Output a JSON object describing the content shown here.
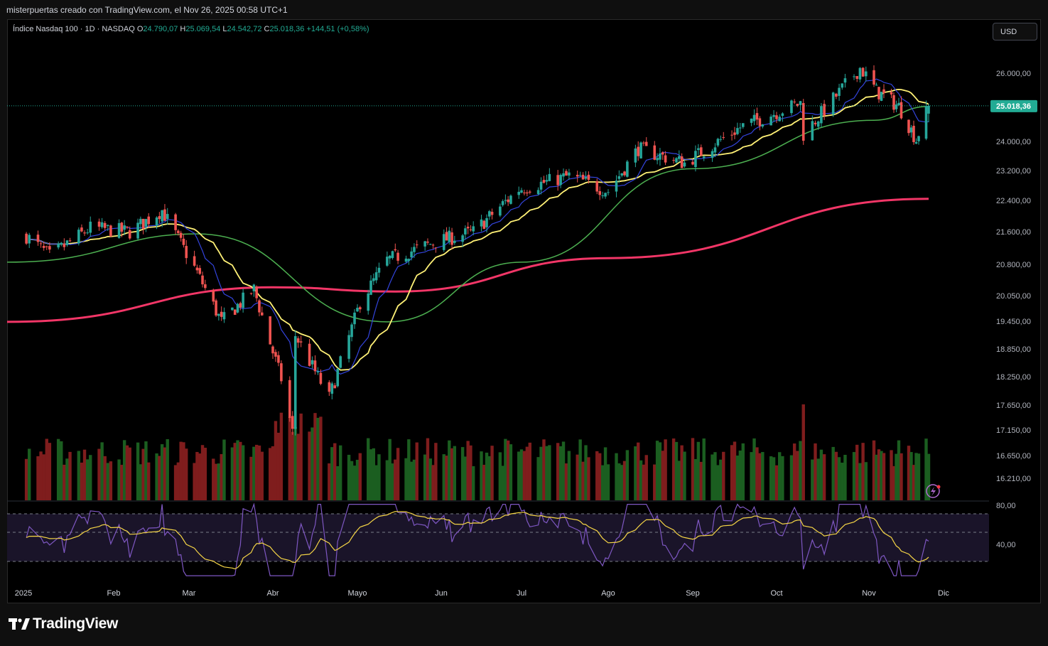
{
  "header": {
    "caption": "misterpuertas creado con TradingView.com, el Nov 26, 2025 00:58 UTC+1"
  },
  "legend": {
    "symbol": "Índice Nasdaq 100 · 1D · NASDAQ",
    "o_label": "O",
    "o": "24.790,07",
    "h_label": "H",
    "h": "25.069,54",
    "l_label": "L",
    "l": "24.542,72",
    "c_label": "C",
    "c": "25.018,36",
    "change": "+144,51 (+0,58%)"
  },
  "currency_button": "USD",
  "brand": "TradingView",
  "colors": {
    "up": "#26a69a",
    "down": "#ef5350",
    "ma_fast": "#3344dd",
    "ma_yellow": "#fff176",
    "ma_green": "#4caf50",
    "ma_long": "#f23667",
    "rsi": "#7e57c2",
    "rsi_ma": "#f5d546",
    "price_tag": "#22ab94"
  },
  "chart_data": {
    "type": "candlestick",
    "title": "",
    "price_axis": {
      "ticks": [
        "26.000,00",
        "24.000,00",
        "23.200,00",
        "22.400,00",
        "21.600,00",
        "20.800,00",
        "20.050,00",
        "19.450,00",
        "18.850,00",
        "18.250,00",
        "17.650,00",
        "17.150,00",
        "16.650,00",
        "16.210,00"
      ],
      "last_price_label": "25.018,36",
      "scale": "log"
    },
    "x_axis": {
      "ticks": [
        "2025",
        "Feb",
        "Mar",
        "Abr",
        "Mayo",
        "Jun",
        "Jul",
        "Ago",
        "Sep",
        "Oct",
        "Nov",
        "Dic"
      ]
    },
    "series": [
      {
        "name": "",
        "kind": "ohlc",
        "points": [
          {
            "date": "2025-01-02",
            "close": 21500
          },
          {
            "date": "2025-01-10",
            "close": 21000
          },
          {
            "date": "2025-01-24",
            "close": 21700
          },
          {
            "date": "2025-02-07",
            "close": 21600
          },
          {
            "date": "2025-02-19",
            "close": 22150
          },
          {
            "date": "2025-03-04",
            "close": 20600
          },
          {
            "date": "2025-03-13",
            "close": 19450
          },
          {
            "date": "2025-03-25",
            "close": 20200
          },
          {
            "date": "2025-04-04",
            "close": 18200
          },
          {
            "date": "2025-04-08",
            "close": 17100
          },
          {
            "date": "2025-04-09",
            "close": 19150
          },
          {
            "date": "2025-04-21",
            "close": 17800
          },
          {
            "date": "2025-05-02",
            "close": 19900
          },
          {
            "date": "2025-05-12",
            "close": 20900
          },
          {
            "date": "2025-05-30",
            "close": 21350
          },
          {
            "date": "2025-06-13",
            "close": 21600
          },
          {
            "date": "2025-06-30",
            "close": 22700
          },
          {
            "date": "2025-07-18",
            "close": 23050
          },
          {
            "date": "2025-08-01",
            "close": 22650
          },
          {
            "date": "2025-08-12",
            "close": 23800
          },
          {
            "date": "2025-08-29",
            "close": 23400
          },
          {
            "date": "2025-09-18",
            "close": 24400
          },
          {
            "date": "2025-10-09",
            "close": 25100
          },
          {
            "date": "2025-10-10",
            "close": 24200
          },
          {
            "date": "2025-10-29",
            "close": 26150
          },
          {
            "date": "2025-11-04",
            "close": 25450
          },
          {
            "date": "2025-11-13",
            "close": 25000
          },
          {
            "date": "2025-11-20",
            "close": 24050
          },
          {
            "date": "2025-11-25",
            "close": 25018.36
          }
        ]
      }
    ],
    "moving_averages": [
      {
        "name": "",
        "color": "#3344dd"
      },
      {
        "name": "",
        "color": "#fff176"
      },
      {
        "name": "",
        "color": "#4caf50",
        "points": [
          {
            "date": "2025-01-02",
            "value": 20850
          },
          {
            "date": "2025-03-04",
            "value": 21550
          },
          {
            "date": "2025-05-12",
            "value": 19450
          },
          {
            "date": "2025-07-01",
            "value": 20850
          },
          {
            "date": "2025-09-01",
            "value": 23250
          },
          {
            "date": "2025-11-03",
            "value": 24600
          },
          {
            "date": "2025-11-25",
            "value": 25000
          }
        ]
      },
      {
        "name": "",
        "color": "#f23667",
        "points": [
          {
            "date": "2025-01-02",
            "value": 19450
          },
          {
            "date": "2025-04-01",
            "value": 20250
          },
          {
            "date": "2025-05-15",
            "value": 20150
          },
          {
            "date": "2025-08-01",
            "value": 20950
          },
          {
            "date": "2025-11-25",
            "value": 22450
          }
        ]
      }
    ],
    "volume": {
      "shown": true
    },
    "rsi": {
      "ticks": [
        "80,00",
        "40,00"
      ],
      "upper": 70,
      "lower": 30,
      "last": 52
    }
  }
}
